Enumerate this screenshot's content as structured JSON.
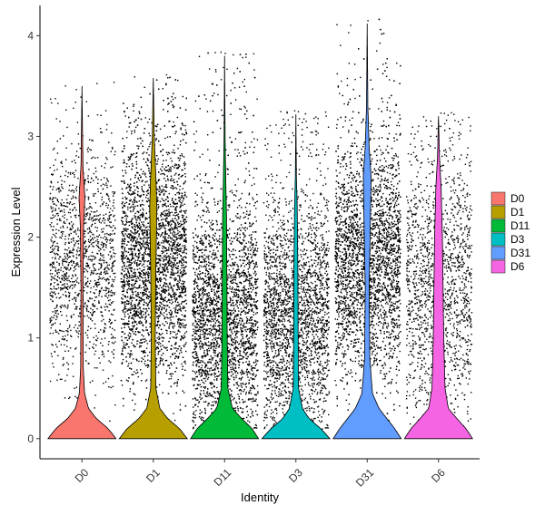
{
  "chart_data": {
    "type": "violin",
    "xlabel": "Identity",
    "ylabel": "Expression Level",
    "ylim": [
      -0.2,
      4.3
    ],
    "yticks": [
      0,
      1,
      2,
      3,
      4
    ],
    "categories": [
      "D0",
      "D1",
      "D11",
      "D3",
      "D31",
      "D6"
    ],
    "series": [
      {
        "name": "D0",
        "color": "#F8766D",
        "max": 3.5,
        "violin": [
          [
            0,
            0.52
          ],
          [
            0.1,
            0.4
          ],
          [
            0.2,
            0.22
          ],
          [
            0.3,
            0.1
          ],
          [
            0.45,
            0.04
          ],
          [
            0.7,
            0.02
          ],
          [
            1.5,
            0.015
          ],
          [
            2.1,
            0.025
          ],
          [
            2.4,
            0.045
          ],
          [
            2.7,
            0.015
          ],
          [
            3.5,
            0.0
          ]
        ],
        "n_points": 1400
      },
      {
        "name": "D1",
        "color": "#B79F00",
        "max": 3.58,
        "violin": [
          [
            0,
            0.52
          ],
          [
            0.1,
            0.4
          ],
          [
            0.2,
            0.22
          ],
          [
            0.3,
            0.1
          ],
          [
            0.5,
            0.04
          ],
          [
            1.0,
            0.03
          ],
          [
            1.7,
            0.04
          ],
          [
            2.3,
            0.055
          ],
          [
            2.6,
            0.04
          ],
          [
            3.0,
            0.015
          ],
          [
            3.58,
            0.0
          ]
        ],
        "n_points": 4000
      },
      {
        "name": "D11",
        "color": "#00BA38",
        "max": 3.8,
        "violin": [
          [
            0,
            0.52
          ],
          [
            0.1,
            0.42
          ],
          [
            0.2,
            0.26
          ],
          [
            0.3,
            0.12
          ],
          [
            0.5,
            0.05
          ],
          [
            1.0,
            0.04
          ],
          [
            1.6,
            0.035
          ],
          [
            2.2,
            0.03
          ],
          [
            2.5,
            0.02
          ],
          [
            3.0,
            0.008
          ],
          [
            3.8,
            0.0
          ]
        ],
        "n_points": 3500
      },
      {
        "name": "D3",
        "color": "#00BFC4",
        "max": 3.22,
        "violin": [
          [
            0,
            0.52
          ],
          [
            0.1,
            0.38
          ],
          [
            0.2,
            0.2
          ],
          [
            0.3,
            0.1
          ],
          [
            0.5,
            0.04
          ],
          [
            1.0,
            0.035
          ],
          [
            1.7,
            0.03
          ],
          [
            2.3,
            0.02
          ],
          [
            2.6,
            0.008
          ],
          [
            3.22,
            0.0
          ]
        ],
        "n_points": 2600
      },
      {
        "name": "D31",
        "color": "#619CFF",
        "max": 4.12,
        "violin": [
          [
            0,
            0.52
          ],
          [
            0.1,
            0.42
          ],
          [
            0.2,
            0.3
          ],
          [
            0.3,
            0.18
          ],
          [
            0.45,
            0.08
          ],
          [
            0.8,
            0.04
          ],
          [
            1.5,
            0.03
          ],
          [
            2.2,
            0.05
          ],
          [
            2.6,
            0.06
          ],
          [
            2.9,
            0.03
          ],
          [
            3.3,
            0.01
          ],
          [
            4.12,
            0.0
          ]
        ],
        "n_points": 3800
      },
      {
        "name": "D6",
        "color": "#F564E3",
        "max": 3.2,
        "violin": [
          [
            0,
            0.52
          ],
          [
            0.1,
            0.42
          ],
          [
            0.2,
            0.28
          ],
          [
            0.3,
            0.15
          ],
          [
            0.5,
            0.1
          ],
          [
            1.0,
            0.08
          ],
          [
            1.5,
            0.07
          ],
          [
            2.0,
            0.06
          ],
          [
            2.5,
            0.04
          ],
          [
            2.8,
            0.015
          ],
          [
            3.2,
            0.0
          ]
        ],
        "n_points": 1600
      }
    ],
    "points_color": "#000000",
    "legend": {
      "position": "right"
    },
    "grid": false
  }
}
